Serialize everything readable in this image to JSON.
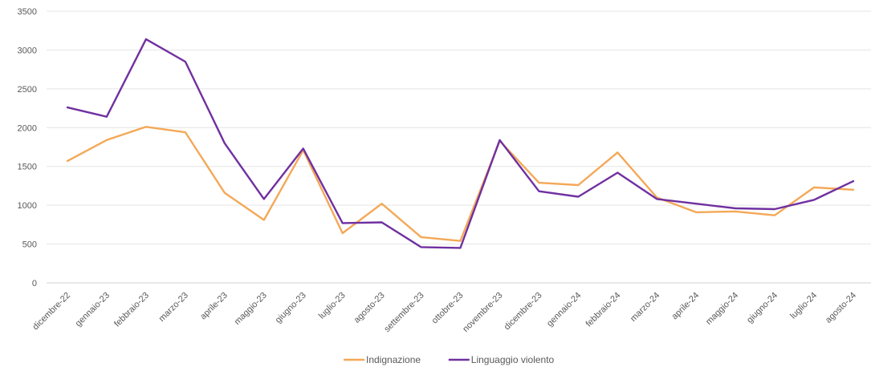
{
  "chart_data": {
    "type": "line",
    "title": "",
    "xlabel": "",
    "ylabel": "",
    "ylim": [
      0,
      3500
    ],
    "yticks": [
      0,
      500,
      1000,
      1500,
      2000,
      2500,
      3000,
      3500
    ],
    "grid": true,
    "legend_position": "bottom",
    "categories": [
      "dicembre-22",
      "gennaio-23",
      "febbraio-23",
      "marzo-23",
      "aprile-23",
      "maggio-23",
      "giugno-23",
      "luglio-23",
      "agosto-23",
      "settembre-23",
      "ottobre-23",
      "novembre-23",
      "dicembre-23",
      "gennaio-24",
      "febbraio-24",
      "marzo-24",
      "aprile-24",
      "maggio-24",
      "giugno-24",
      "luglio-24",
      "agosto-24"
    ],
    "series": [
      {
        "name": "Indignazione",
        "color": "#F4A857",
        "values": [
          1570,
          1840,
          2010,
          1940,
          1160,
          810,
          1710,
          640,
          1020,
          590,
          540,
          1830,
          1290,
          1260,
          1680,
          1100,
          910,
          920,
          870,
          1230,
          1200
        ]
      },
      {
        "name": "Linguaggio violento",
        "color": "#7030A0",
        "values": [
          2260,
          2140,
          3140,
          2850,
          1800,
          1080,
          1730,
          770,
          780,
          460,
          450,
          1840,
          1180,
          1110,
          1420,
          1080,
          1020,
          960,
          950,
          1070,
          1310
        ]
      }
    ]
  }
}
